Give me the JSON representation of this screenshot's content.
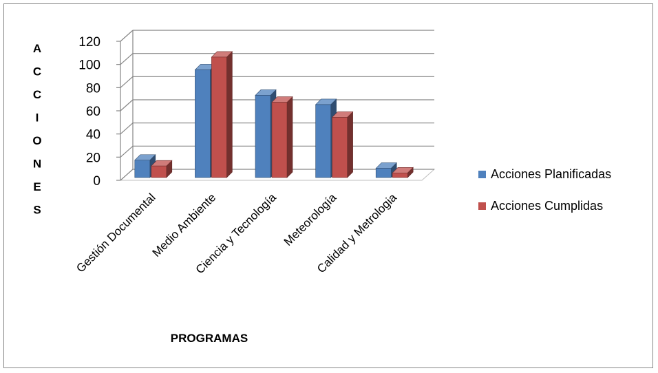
{
  "chart_data": {
    "type": "bar",
    "title": "",
    "xlabel": "PROGRAMAS",
    "ylabel": "ACCIONES",
    "categories": [
      "Gestión Documental",
      "Medio Ambiente",
      "Ciencia y Tecnología",
      "Meteorología",
      "Calidad y Metrologia"
    ],
    "series": [
      {
        "name": "Acciones Planificadas",
        "values": [
          15,
          93,
          71,
          63,
          8
        ],
        "color": "#4F81BD"
      },
      {
        "name": "Acciones Cumplidas",
        "values": [
          10,
          104,
          65,
          52,
          4
        ],
        "color": "#C0504D"
      }
    ],
    "ylim": [
      0,
      120
    ],
    "yticks": [
      0,
      20,
      40,
      60,
      80,
      100,
      120
    ],
    "grid": true,
    "legend": "right",
    "three_d": true
  }
}
